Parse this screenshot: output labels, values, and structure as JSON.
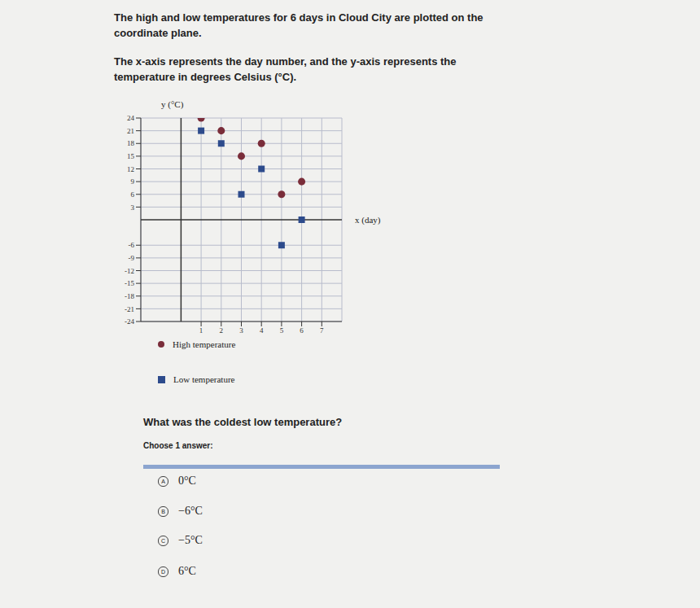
{
  "intro": [
    "The high and low temperatures for 6 days in Cloud City are plotted on the coordinate plane.",
    "The x-axis represents the day number, and the y-axis represents the temperature in degrees Celsius (°C)."
  ],
  "chart_data": {
    "type": "scatter",
    "x_label": "x (day)",
    "y_label": "y (°C)",
    "x": [
      1,
      2,
      3,
      4,
      5,
      6
    ],
    "series": [
      {
        "name": "High temperature",
        "color": "#7a2d3a",
        "marker": "circle",
        "values": [
          24,
          21,
          15,
          18,
          6,
          9
        ]
      },
      {
        "name": "Low temperature",
        "color": "#2d4b8c",
        "marker": "square",
        "values": [
          21,
          18,
          6,
          12,
          -6,
          0
        ]
      }
    ],
    "xlim": [
      -2,
      8
    ],
    "xticks": [
      1,
      2,
      3,
      4,
      5,
      6,
      7
    ],
    "ylim": [
      -24,
      24
    ],
    "yticks": [
      -24,
      -21,
      -18,
      -15,
      -12,
      -9,
      -6,
      3,
      6,
      9,
      12,
      15,
      18,
      21,
      24
    ],
    "grid": true
  },
  "question": "What was the coldest low temperature?",
  "prompt": "Choose 1 answer:",
  "choices": [
    {
      "letter": "A",
      "text": "0°C"
    },
    {
      "letter": "B",
      "text": "−6°C"
    },
    {
      "letter": "C",
      "text": "−5°C"
    },
    {
      "letter": "D",
      "text": "6°C"
    }
  ]
}
